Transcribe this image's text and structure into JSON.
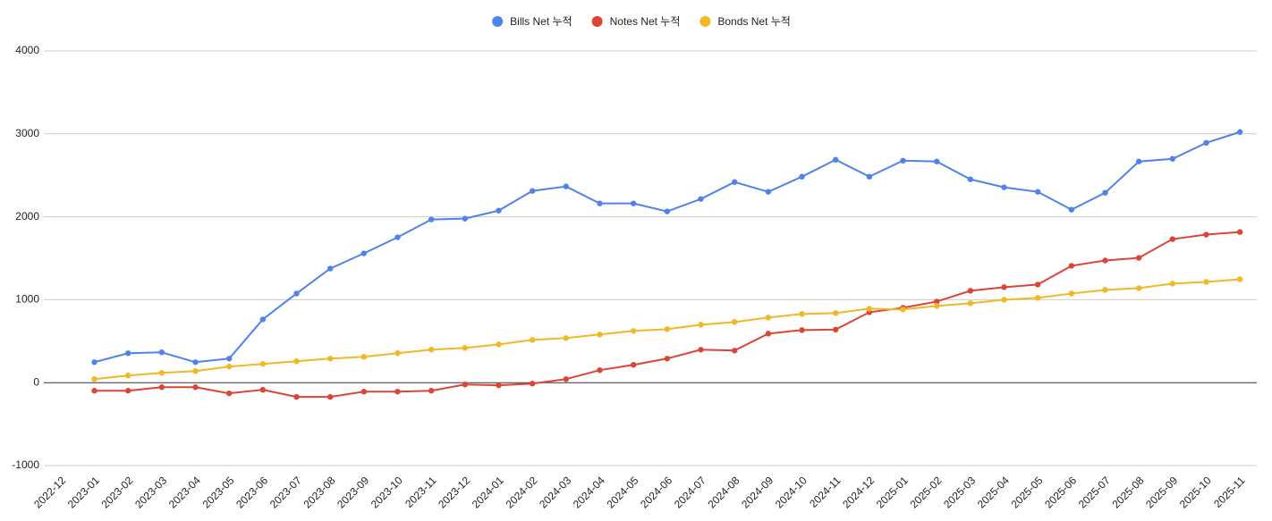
{
  "chart_data": {
    "type": "line",
    "categories": [
      "2022-12",
      "2023-01",
      "2023-02",
      "2023-03",
      "2023-04",
      "2023-05",
      "2023-06",
      "2023-07",
      "2023-08",
      "2023-09",
      "2023-10",
      "2023-11",
      "2023-12",
      "2024-01",
      "2024-02",
      "2024-03",
      "2024-04",
      "2024-05",
      "2024-06",
      "2024-07",
      "2024-08",
      "2024-09",
      "2024-10",
      "2024-11",
      "2024-12",
      "2025-01",
      "2025-02",
      "2025-03",
      "2025-04",
      "2025-05",
      "2025-06",
      "2025-07",
      "2025-08",
      "2025-09",
      "2025-10",
      "2025-11"
    ],
    "series": [
      {
        "name": "Bills Net 누적",
        "color": "#5083e9",
        "values": [
          null,
          247,
          355,
          366,
          247,
          290,
          763,
          1075,
          1376,
          1559,
          1753,
          1968,
          1978,
          2075,
          2312,
          2366,
          2161,
          2161,
          2065,
          2215,
          2419,
          2301,
          2484,
          2688,
          2484,
          2677,
          2667,
          2452,
          2355,
          2301,
          2086,
          2290,
          2667,
          2699,
          2892,
          3022
        ]
      },
      {
        "name": "Notes Net 누적",
        "color": "#dc4437",
        "values": [
          null,
          -97,
          -97,
          -54,
          -54,
          -129,
          -86,
          -172,
          -172,
          -108,
          -108,
          -97,
          -22,
          -32,
          -11,
          43,
          151,
          215,
          290,
          398,
          387,
          591,
          634,
          640,
          849,
          903,
          978,
          1108,
          1151,
          1183,
          1409,
          1473,
          1505,
          1731,
          1785,
          1817
        ]
      },
      {
        "name": "Bonds Net 누적",
        "color": "#f2b824",
        "values": [
          null,
          43,
          86,
          118,
          140,
          194,
          226,
          258,
          290,
          312,
          355,
          398,
          419,
          462,
          516,
          538,
          581,
          624,
          645,
          699,
          731,
          785,
          828,
          839,
          892,
          882,
          925,
          957,
          1000,
          1022,
          1075,
          1118,
          1140,
          1194,
          1215,
          1247
        ]
      }
    ],
    "ylim": [
      -1000,
      4000
    ],
    "yticks": [
      -1000,
      0,
      1000,
      2000,
      3000,
      4000
    ],
    "grid": true,
    "legend": "top"
  }
}
